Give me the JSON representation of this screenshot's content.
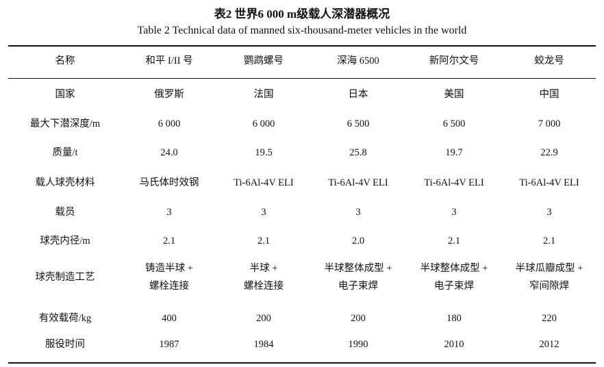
{
  "title": "表2  世界6 000 m级载人深潜器概况",
  "subtitle": "Table 2   Technical data of manned six-thousand-meter vehicles in the world",
  "table": {
    "headers": [
      "名称",
      "和平 I/II 号",
      "鹦鹉螺号",
      "深海 6500",
      "新阿尔文号",
      "蛟龙号"
    ],
    "rows": [
      [
        "国家",
        "俄罗斯",
        "法国",
        "日本",
        "美国",
        "中国"
      ],
      [
        "最大下潜深度/m",
        "6 000",
        "6 000",
        "6 500",
        "6 500",
        "7 000"
      ],
      [
        "质量/t",
        "24.0",
        "19.5",
        "25.8",
        "19.7",
        "22.9"
      ],
      [
        "载人球壳材料",
        "马氏体时效钢",
        "Ti-6Al-4V ELI",
        "Ti-6Al-4V ELI",
        "Ti-6Al-4V ELI",
        "Ti-6Al-4V ELI"
      ],
      [
        "载员",
        "3",
        "3",
        "3",
        "3",
        "3"
      ],
      [
        "球壳内径/m",
        "2.1",
        "2.1",
        "2.0",
        "2.1",
        "2.1"
      ],
      [
        "球壳制造工艺",
        "铸造半球 +\n螺栓连接",
        "半球 +\n螺栓连接",
        "半球整体成型 +\n电子束焊",
        "半球整体成型 +\n电子束焊",
        "半球瓜瓣成型 +\n窄间隙焊"
      ],
      [
        "有效载荷/kg",
        "400",
        "200",
        "200",
        "180",
        "220"
      ],
      [
        "服役时间",
        "1987",
        "1984",
        "1990",
        "2010",
        "2012"
      ]
    ]
  }
}
